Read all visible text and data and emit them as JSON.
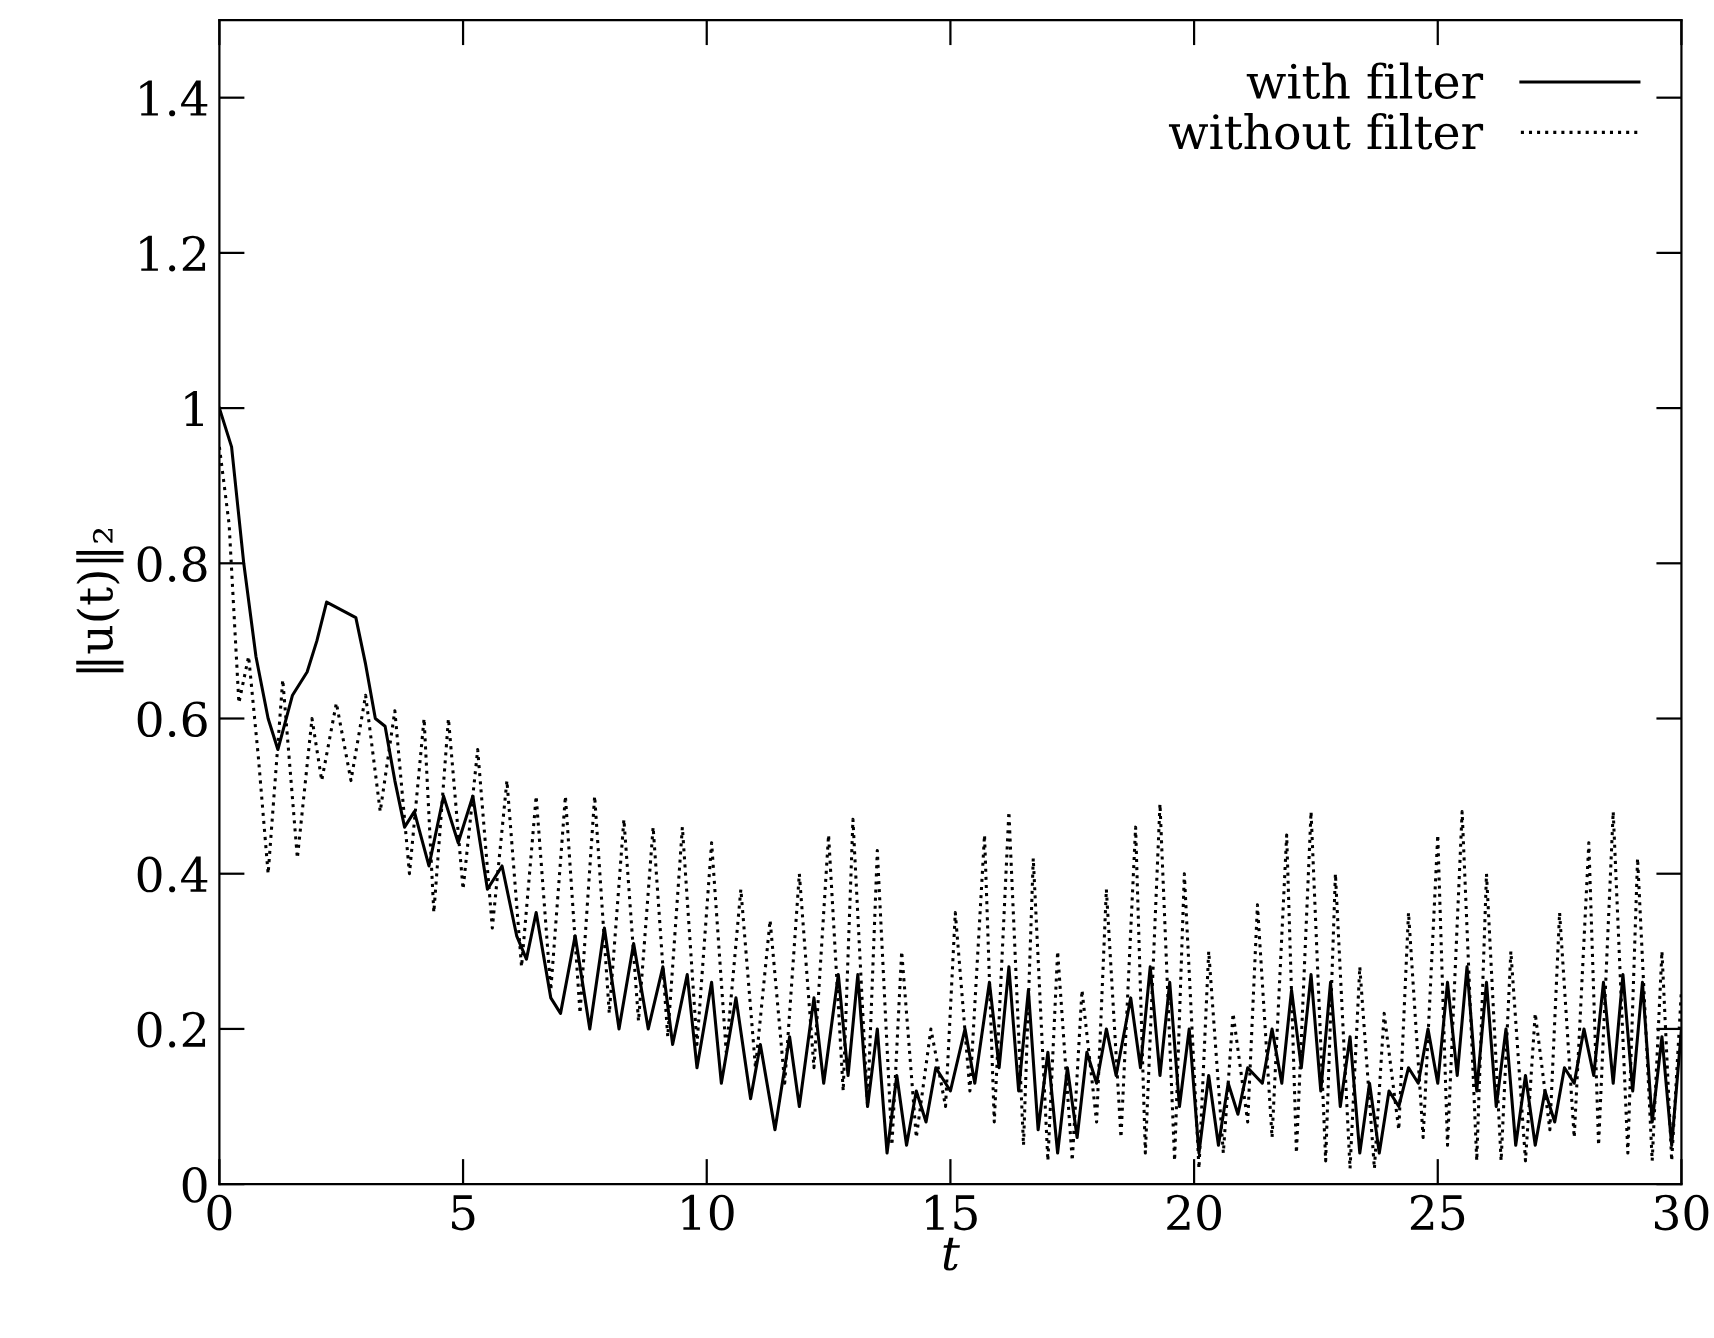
{
  "chart_data": {
    "type": "line",
    "xlabel": "t",
    "ylabel": "‖u(t)‖₂",
    "xlim": [
      0,
      30
    ],
    "ylim": [
      0,
      1.5
    ],
    "xticks": [
      0,
      5,
      10,
      15,
      20,
      25,
      30
    ],
    "yticks": [
      0,
      0.2,
      0.4,
      0.6,
      0.8,
      1,
      1.2,
      1.4
    ],
    "grid": false,
    "legend": "top right",
    "marker": "none",
    "series": [
      {
        "name": "with filter",
        "color": "#000000",
        "line_style": "solid",
        "x": [
          0,
          0.25,
          0.5,
          0.75,
          1.0,
          1.2,
          1.5,
          1.8,
          2.0,
          2.2,
          2.5,
          2.8,
          3.0,
          3.2,
          3.4,
          3.6,
          3.8,
          4.0,
          4.3,
          4.6,
          4.9,
          5.2,
          5.5,
          5.8,
          6.1,
          6.3,
          6.5,
          6.8,
          7.0,
          7.3,
          7.6,
          7.9,
          8.2,
          8.5,
          8.8,
          9.1,
          9.3,
          9.6,
          9.8,
          10.1,
          10.3,
          10.6,
          10.9,
          11.1,
          11.4,
          11.7,
          11.9,
          12.2,
          12.4,
          12.7,
          12.9,
          13.1,
          13.3,
          13.5,
          13.7,
          13.9,
          14.1,
          14.3,
          14.5,
          14.7,
          15.0,
          15.3,
          15.5,
          15.8,
          16.0,
          16.2,
          16.4,
          16.6,
          16.8,
          17.0,
          17.2,
          17.4,
          17.6,
          17.8,
          18.0,
          18.2,
          18.4,
          18.7,
          18.9,
          19.1,
          19.3,
          19.5,
          19.7,
          19.9,
          20.1,
          20.3,
          20.5,
          20.7,
          20.9,
          21.1,
          21.4,
          21.6,
          21.8,
          22.0,
          22.2,
          22.4,
          22.6,
          22.8,
          23.0,
          23.2,
          23.4,
          23.6,
          23.8,
          24.0,
          24.2,
          24.4,
          24.6,
          24.8,
          25.0,
          25.2,
          25.4,
          25.6,
          25.8,
          26.0,
          26.2,
          26.4,
          26.6,
          26.8,
          27.0,
          27.2,
          27.4,
          27.6,
          27.8,
          28.0,
          28.2,
          28.4,
          28.6,
          28.8,
          29.0,
          29.2,
          29.4,
          29.6,
          29.8,
          30.0
        ],
        "values": [
          1.0,
          0.95,
          0.8,
          0.68,
          0.6,
          0.56,
          0.63,
          0.66,
          0.7,
          0.75,
          0.74,
          0.73,
          0.67,
          0.6,
          0.59,
          0.52,
          0.46,
          0.48,
          0.41,
          0.5,
          0.44,
          0.5,
          0.38,
          0.41,
          0.32,
          0.29,
          0.35,
          0.24,
          0.22,
          0.32,
          0.2,
          0.33,
          0.2,
          0.31,
          0.2,
          0.28,
          0.18,
          0.27,
          0.15,
          0.26,
          0.13,
          0.24,
          0.11,
          0.18,
          0.07,
          0.19,
          0.1,
          0.24,
          0.13,
          0.27,
          0.14,
          0.27,
          0.1,
          0.2,
          0.04,
          0.14,
          0.05,
          0.12,
          0.08,
          0.15,
          0.12,
          0.2,
          0.13,
          0.26,
          0.15,
          0.28,
          0.12,
          0.25,
          0.07,
          0.17,
          0.04,
          0.15,
          0.06,
          0.17,
          0.13,
          0.2,
          0.14,
          0.24,
          0.15,
          0.28,
          0.14,
          0.26,
          0.1,
          0.2,
          0.04,
          0.14,
          0.05,
          0.13,
          0.09,
          0.15,
          0.13,
          0.2,
          0.13,
          0.25,
          0.15,
          0.27,
          0.12,
          0.26,
          0.1,
          0.19,
          0.04,
          0.13,
          0.04,
          0.12,
          0.1,
          0.15,
          0.13,
          0.2,
          0.13,
          0.26,
          0.14,
          0.28,
          0.12,
          0.26,
          0.1,
          0.2,
          0.05,
          0.14,
          0.05,
          0.12,
          0.08,
          0.15,
          0.13,
          0.2,
          0.14,
          0.26,
          0.13,
          0.27,
          0.12,
          0.26,
          0.08,
          0.19,
          0.05,
          0.2
        ]
      },
      {
        "name": "without filter",
        "color": "#000000",
        "line_style": "dotted",
        "x": [
          0,
          0.2,
          0.4,
          0.6,
          0.8,
          1.0,
          1.3,
          1.6,
          1.9,
          2.1,
          2.4,
          2.7,
          3.0,
          3.3,
          3.6,
          3.9,
          4.2,
          4.4,
          4.7,
          5.0,
          5.3,
          5.6,
          5.9,
          6.2,
          6.5,
          6.8,
          7.1,
          7.4,
          7.7,
          8.0,
          8.3,
          8.6,
          8.9,
          9.2,
          9.5,
          9.8,
          10.1,
          10.4,
          10.7,
          11.0,
          11.3,
          11.6,
          11.9,
          12.2,
          12.5,
          12.8,
          13.0,
          13.3,
          13.5,
          13.8,
          14.0,
          14.3,
          14.6,
          14.9,
          15.1,
          15.4,
          15.7,
          15.9,
          16.2,
          16.5,
          16.7,
          17.0,
          17.2,
          17.5,
          17.7,
          18.0,
          18.2,
          18.5,
          18.8,
          19.0,
          19.3,
          19.6,
          19.8,
          20.1,
          20.3,
          20.6,
          20.8,
          21.1,
          21.3,
          21.6,
          21.9,
          22.1,
          22.4,
          22.7,
          22.9,
          23.2,
          23.4,
          23.7,
          23.9,
          24.2,
          24.4,
          24.7,
          25.0,
          25.2,
          25.5,
          25.8,
          26.0,
          26.3,
          26.5,
          26.8,
          27.0,
          27.3,
          27.5,
          27.8,
          28.1,
          28.3,
          28.6,
          28.9,
          29.1,
          29.4,
          29.6,
          29.8,
          30.0
        ],
        "values": [
          0.95,
          0.85,
          0.62,
          0.68,
          0.55,
          0.4,
          0.65,
          0.42,
          0.6,
          0.52,
          0.62,
          0.52,
          0.63,
          0.48,
          0.61,
          0.4,
          0.6,
          0.35,
          0.6,
          0.38,
          0.56,
          0.33,
          0.52,
          0.28,
          0.5,
          0.25,
          0.5,
          0.22,
          0.5,
          0.22,
          0.47,
          0.21,
          0.46,
          0.19,
          0.46,
          0.18,
          0.44,
          0.17,
          0.38,
          0.15,
          0.34,
          0.13,
          0.4,
          0.15,
          0.45,
          0.12,
          0.47,
          0.1,
          0.43,
          0.05,
          0.3,
          0.06,
          0.2,
          0.1,
          0.35,
          0.12,
          0.45,
          0.08,
          0.48,
          0.05,
          0.42,
          0.03,
          0.3,
          0.03,
          0.25,
          0.08,
          0.38,
          0.06,
          0.46,
          0.04,
          0.49,
          0.03,
          0.4,
          0.02,
          0.3,
          0.04,
          0.22,
          0.08,
          0.36,
          0.06,
          0.45,
          0.04,
          0.48,
          0.03,
          0.4,
          0.02,
          0.28,
          0.02,
          0.22,
          0.07,
          0.35,
          0.06,
          0.45,
          0.05,
          0.48,
          0.03,
          0.4,
          0.03,
          0.3,
          0.03,
          0.22,
          0.07,
          0.35,
          0.06,
          0.44,
          0.05,
          0.48,
          0.04,
          0.42,
          0.03,
          0.3,
          0.03,
          0.25
        ]
      }
    ]
  }
}
